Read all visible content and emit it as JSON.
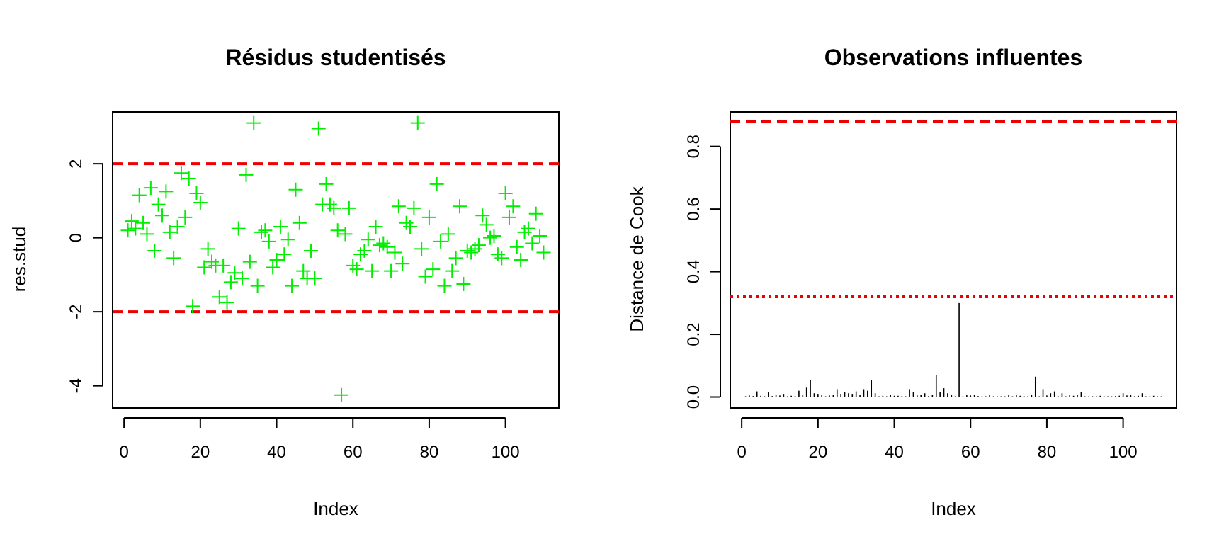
{
  "chart_data": [
    {
      "type": "scatter",
      "title": "Résidus studentisés",
      "xlabel": "Index",
      "ylabel": "res.stud",
      "xlim": [
        -3,
        114
      ],
      "ylim": [
        -4.6,
        3.4
      ],
      "xticks": [
        0,
        20,
        40,
        60,
        80,
        100
      ],
      "yticks": [
        -4,
        -2,
        0,
        2
      ],
      "marker": "plus",
      "point_color": "#00ee00",
      "hlines": [
        {
          "y": 2,
          "color": "#ee0000",
          "style": "dashed"
        },
        {
          "y": -2,
          "color": "#ee0000",
          "style": "dashed"
        }
      ],
      "x": [
        1,
        2,
        3,
        4,
        5,
        6,
        7,
        8,
        9,
        10,
        11,
        12,
        13,
        14,
        15,
        16,
        17,
        18,
        19,
        20,
        21,
        22,
        23,
        24,
        25,
        26,
        27,
        28,
        29,
        30,
        31,
        32,
        33,
        34,
        35,
        36,
        37,
        38,
        39,
        40,
        41,
        42,
        43,
        44,
        45,
        46,
        47,
        48,
        49,
        50,
        51,
        52,
        53,
        54,
        55,
        56,
        57,
        58,
        59,
        60,
        61,
        62,
        63,
        64,
        65,
        66,
        67,
        68,
        69,
        70,
        71,
        72,
        73,
        74,
        75,
        76,
        77,
        78,
        79,
        80,
        81,
        82,
        83,
        84,
        85,
        86,
        87,
        88,
        89,
        90,
        91,
        92,
        93,
        94,
        95,
        96,
        97,
        98,
        99,
        100,
        101,
        102,
        103,
        104,
        105,
        106,
        107,
        108,
        109,
        110
      ],
      "y": [
        0.2,
        0.45,
        0.25,
        1.15,
        0.4,
        0.1,
        1.35,
        -0.35,
        0.9,
        0.6,
        1.25,
        0.15,
        -0.55,
        0.3,
        1.75,
        0.55,
        1.6,
        -1.85,
        1.2,
        0.95,
        -0.8,
        -0.3,
        -0.65,
        -0.75,
        -1.6,
        -0.75,
        -1.75,
        -1.2,
        -0.95,
        0.25,
        -1.1,
        1.7,
        -0.65,
        3.1,
        -1.3,
        0.15,
        0.2,
        -0.1,
        -0.8,
        -0.6,
        0.3,
        -0.45,
        -0.05,
        -1.3,
        1.3,
        0.4,
        -0.9,
        -1.1,
        -0.35,
        -1.1,
        2.95,
        0.9,
        1.45,
        0.9,
        0.8,
        0.2,
        -4.25,
        0.1,
        0.8,
        -0.75,
        -0.85,
        -0.45,
        -0.35,
        -0.05,
        -0.9,
        0.3,
        -0.2,
        -0.15,
        -0.25,
        -0.9,
        -0.4,
        0.85,
        -0.7,
        0.4,
        0.3,
        0.8,
        3.1,
        -0.3,
        -1.05,
        0.55,
        -0.85,
        1.45,
        -0.1,
        -1.3,
        0.1,
        -0.9,
        -0.55,
        0.85,
        -1.25,
        -0.35,
        -0.4,
        -0.3,
        -0.2,
        0.6,
        0.35,
        0.0,
        0.05,
        -0.45,
        -0.55,
        1.2,
        0.55,
        0.85,
        -0.25,
        -0.6,
        0.15,
        0.25,
        -0.15,
        0.65,
        0.05,
        -0.4
      ]
    },
    {
      "type": "bar",
      "title": "Observations influentes",
      "xlabel": "Index",
      "ylabel": "Distance de Cook",
      "xlim": [
        -3,
        114
      ],
      "ylim": [
        -0.035,
        0.91
      ],
      "xticks": [
        0,
        20,
        40,
        60,
        80,
        100
      ],
      "yticks": [
        0.0,
        0.2,
        0.4,
        0.6,
        0.8
      ],
      "bar_color": "#000000",
      "hlines": [
        {
          "y": 0.88,
          "color": "#ee0000",
          "style": "dashed"
        },
        {
          "y": 0.32,
          "color": "#ee0000",
          "style": "dotted"
        }
      ],
      "x": [
        1,
        2,
        3,
        4,
        5,
        6,
        7,
        8,
        9,
        10,
        11,
        12,
        13,
        14,
        15,
        16,
        17,
        18,
        19,
        20,
        21,
        22,
        23,
        24,
        25,
        26,
        27,
        28,
        29,
        30,
        31,
        32,
        33,
        34,
        35,
        36,
        37,
        38,
        39,
        40,
        41,
        42,
        43,
        44,
        45,
        46,
        47,
        48,
        49,
        50,
        51,
        52,
        53,
        54,
        55,
        56,
        57,
        58,
        59,
        60,
        61,
        62,
        63,
        64,
        65,
        66,
        67,
        68,
        69,
        70,
        71,
        72,
        73,
        74,
        75,
        76,
        77,
        78,
        79,
        80,
        81,
        82,
        83,
        84,
        85,
        86,
        87,
        88,
        89,
        90,
        91,
        92,
        93,
        94,
        95,
        96,
        97,
        98,
        99,
        100,
        101,
        102,
        103,
        104,
        105,
        106,
        107,
        108,
        109,
        110
      ],
      "values": [
        0.002,
        0.005,
        0.003,
        0.018,
        0.004,
        0.002,
        0.015,
        0.003,
        0.008,
        0.005,
        0.01,
        0.002,
        0.004,
        0.003,
        0.02,
        0.006,
        0.03,
        0.055,
        0.012,
        0.01,
        0.008,
        0.002,
        0.005,
        0.006,
        0.025,
        0.01,
        0.015,
        0.012,
        0.01,
        0.018,
        0.008,
        0.025,
        0.02,
        0.055,
        0.012,
        0.002,
        0.004,
        0.001,
        0.006,
        0.004,
        0.004,
        0.003,
        0.001,
        0.025,
        0.015,
        0.005,
        0.008,
        0.012,
        0.003,
        0.008,
        0.07,
        0.015,
        0.028,
        0.012,
        0.008,
        0.002,
        0.3,
        0.001,
        0.008,
        0.005,
        0.007,
        0.003,
        0.002,
        0.001,
        0.006,
        0.002,
        0.001,
        0.001,
        0.002,
        0.008,
        0.002,
        0.006,
        0.004,
        0.003,
        0.002,
        0.006,
        0.065,
        0.002,
        0.025,
        0.005,
        0.012,
        0.018,
        0.001,
        0.012,
        0.002,
        0.006,
        0.004,
        0.008,
        0.015,
        0.002,
        0.002,
        0.001,
        0.001,
        0.004,
        0.002,
        0.001,
        0.001,
        0.003,
        0.004,
        0.012,
        0.005,
        0.008,
        0.001,
        0.004,
        0.012,
        0.001,
        0.001,
        0.004,
        0.001,
        0.002
      ]
    }
  ]
}
